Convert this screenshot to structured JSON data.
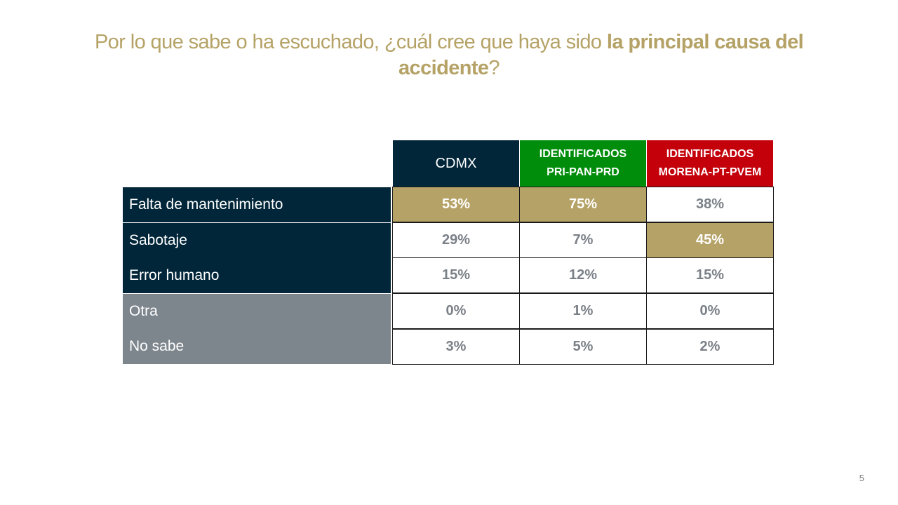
{
  "title": {
    "part1": "Por lo que sabe o ha escuchado, ¿cuál cree que haya sido ",
    "bold": "la principal causa del accidente",
    "part2": "?"
  },
  "colors": {
    "title": "#b5a266",
    "highlight": "#b5a266",
    "navy": "#012639",
    "gray": "#7e868d",
    "green": "#008d0b",
    "red": "#c4000b"
  },
  "chart_data": {
    "type": "table",
    "title": "Por lo que sabe o ha escuchado, ¿cuál cree que haya sido la principal causa del accidente?",
    "columns": [
      {
        "label": "CDMX",
        "color": "#012639"
      },
      {
        "label_line1": "IDENTIFICADOS",
        "label_line2": "PRI-PAN-PRD",
        "color": "#008d0b"
      },
      {
        "label_line1": "IDENTIFICADOS",
        "label_line2": "MORENA-PT-PVEM",
        "color": "#c4000b"
      }
    ],
    "rows": [
      {
        "label": "Falta de mantenimiento",
        "style": "navy",
        "values": [
          "53%",
          "75%",
          "38%"
        ],
        "highlight": [
          true,
          true,
          false
        ]
      },
      {
        "label": "Sabotaje",
        "style": "navy",
        "values": [
          "29%",
          "7%",
          "45%"
        ],
        "highlight": [
          false,
          false,
          true
        ]
      },
      {
        "label": "Error humano",
        "style": "navy",
        "values": [
          "15%",
          "12%",
          "15%"
        ],
        "highlight": [
          false,
          false,
          false
        ]
      },
      {
        "label": "Otra",
        "style": "gray",
        "values": [
          "0%",
          "1%",
          "0%"
        ],
        "highlight": [
          false,
          false,
          false
        ]
      },
      {
        "label": "No sabe",
        "style": "gray",
        "values": [
          "3%",
          "5%",
          "2%"
        ],
        "highlight": [
          false,
          false,
          false
        ]
      }
    ]
  },
  "page_number": "5"
}
